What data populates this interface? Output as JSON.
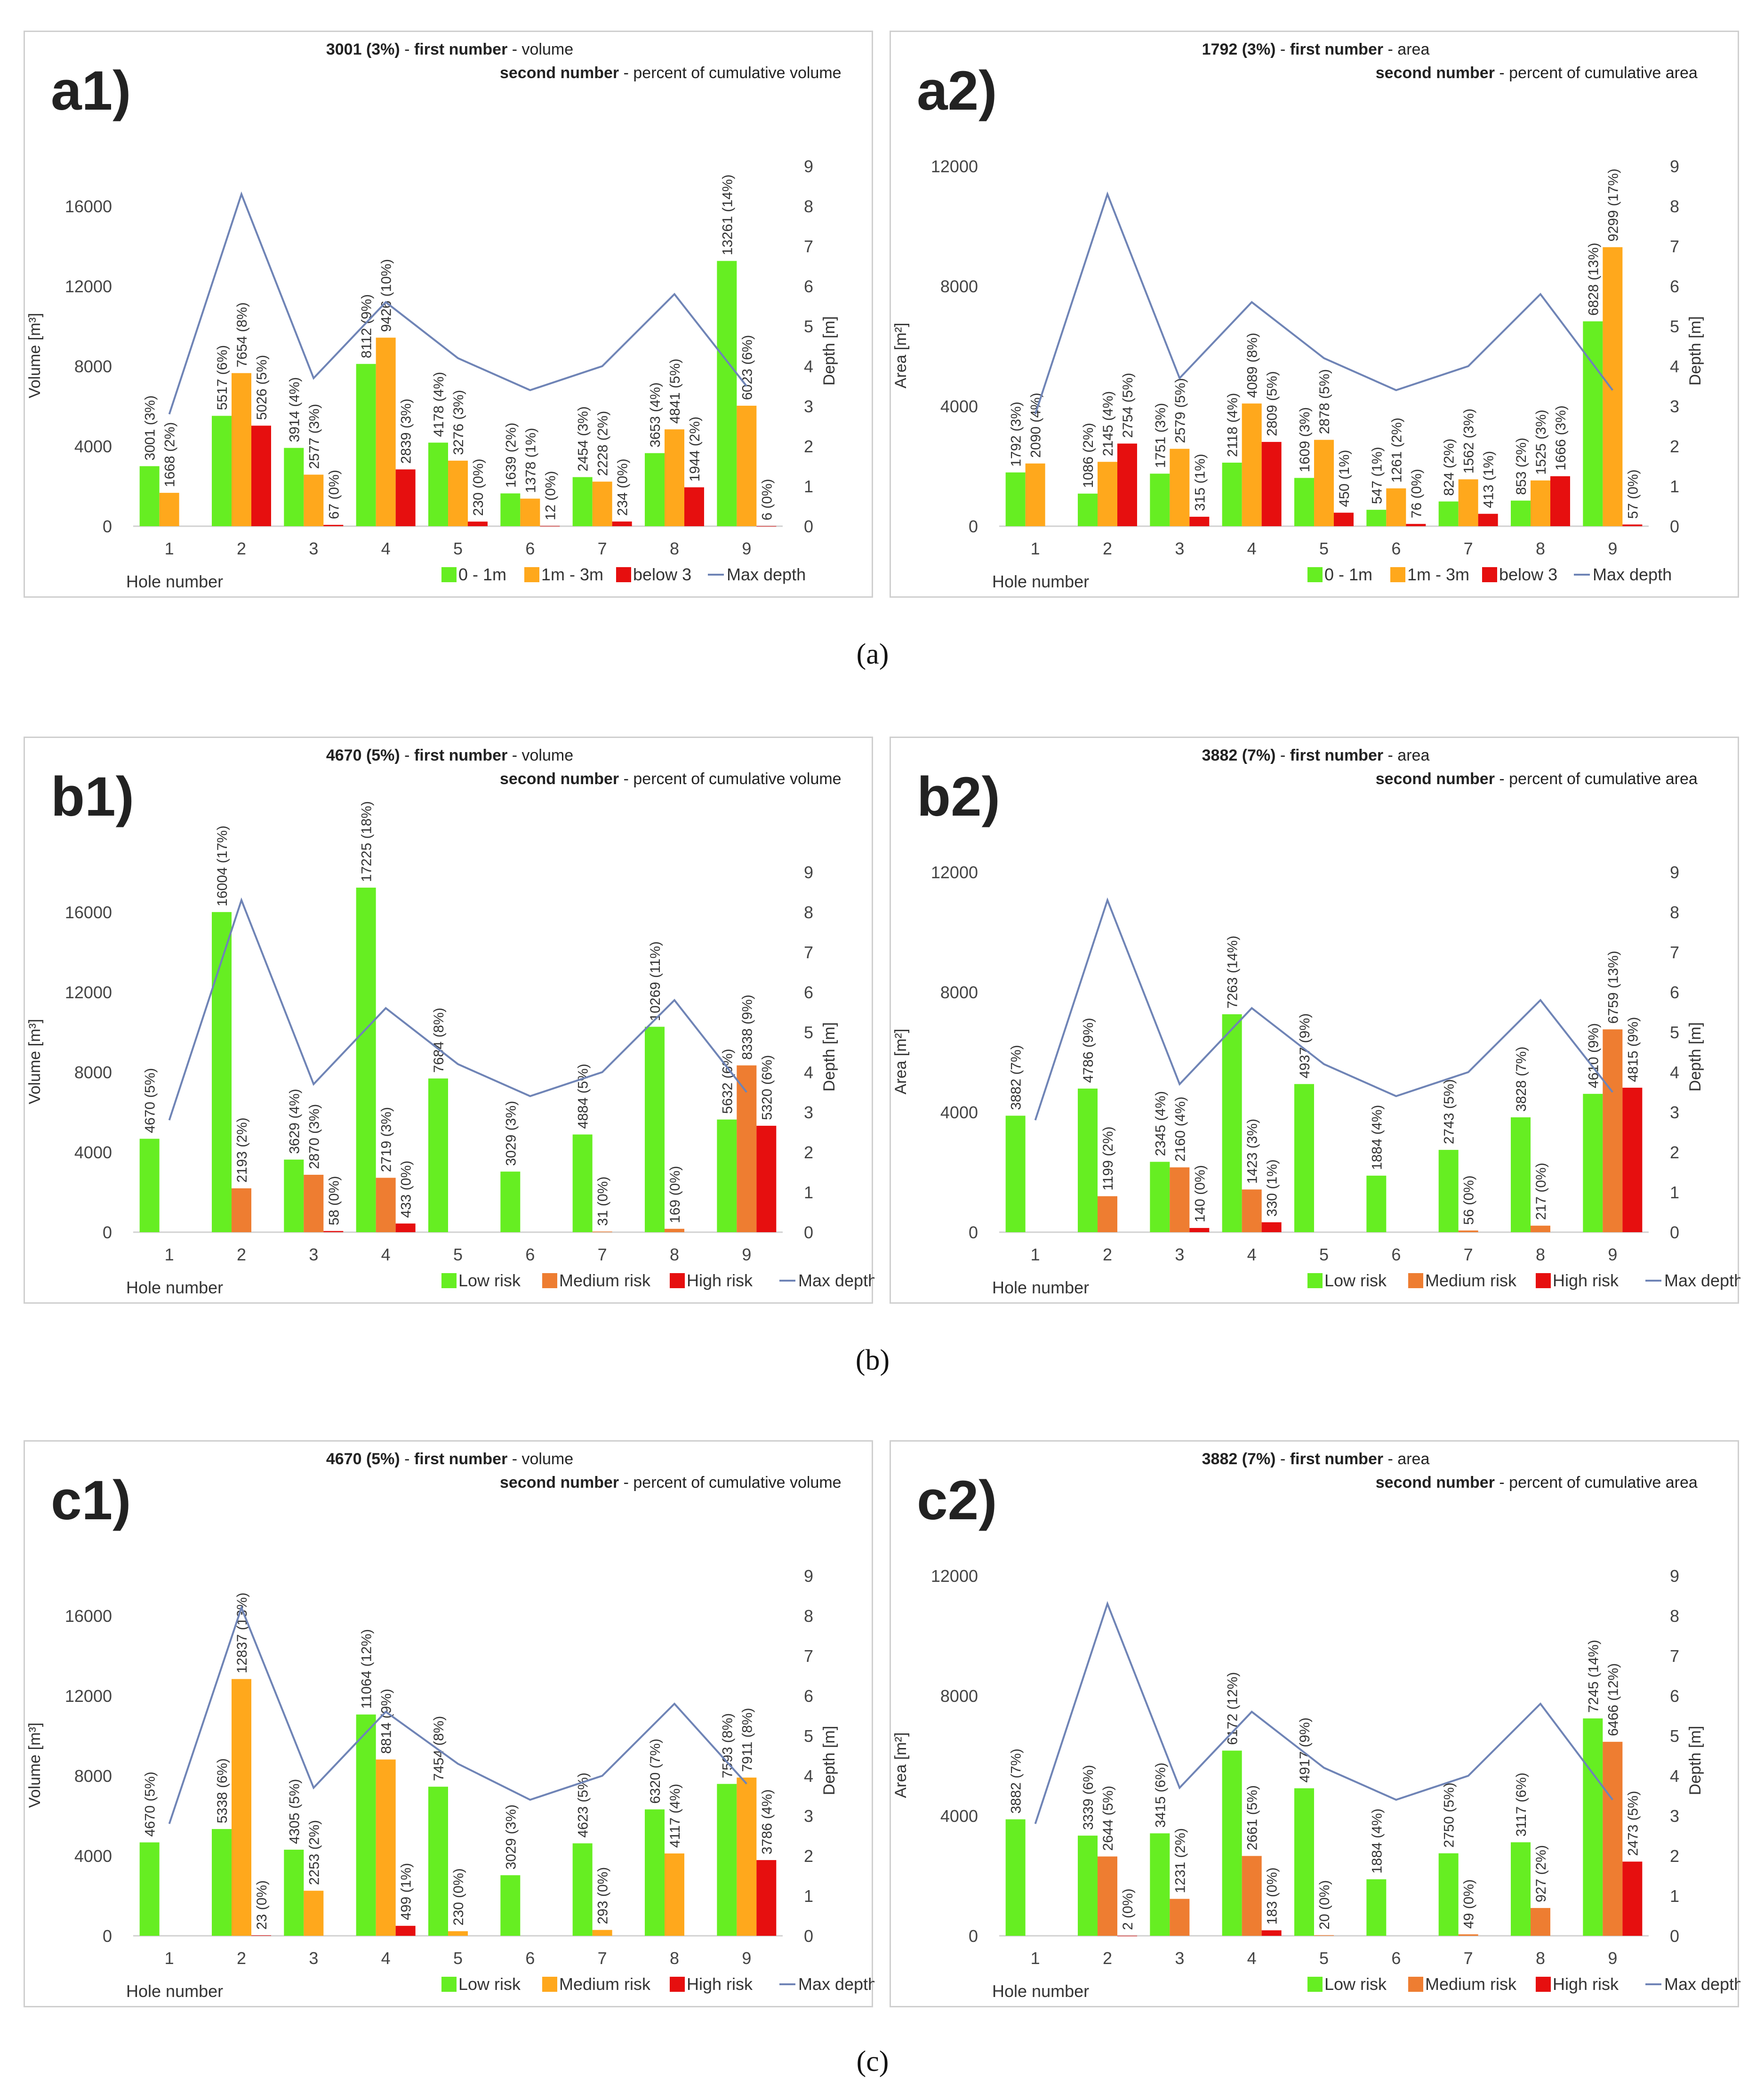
{
  "captions": [
    "(a)",
    "(b)",
    "(c)"
  ],
  "colors": {
    "green": "#66ee22",
    "orange": "#ffa81c",
    "orange_dark": "#ee7d31",
    "red": "#e60f0f",
    "line": "#6f84b6",
    "axis": "#595959"
  },
  "chart_data": [
    {
      "id": "a1",
      "type": "bar+line",
      "panel_label": "a1)",
      "header": {
        "value": "3001 (3%)",
        "sep": " - ",
        "k1": "first number",
        "d1": " - volume",
        "k2": "second number",
        "d2": " - percent of cumulative volume"
      },
      "categories": [
        "1",
        "2",
        "3",
        "4",
        "5",
        "6",
        "7",
        "8",
        "9"
      ],
      "xlabel": "Hole number",
      "ylabel": "Volume [m³]",
      "y2label": "Depth [m]",
      "ylim": [
        0,
        18000
      ],
      "yticks": [
        0,
        4000,
        8000,
        12000,
        16000
      ],
      "y2lim": [
        0,
        9
      ],
      "y2ticks": [
        0,
        1,
        2,
        3,
        4,
        5,
        6,
        7,
        8,
        9
      ],
      "series": [
        {
          "name": "0 - 1m",
          "color": "green",
          "values": [
            3001,
            5517,
            3914,
            8112,
            4178,
            1639,
            2454,
            3653,
            13261
          ],
          "labels": [
            "3001 (3%)",
            "5517 (6%)",
            "3914 (4%)",
            "8112 (9%)",
            "4178 (4%)",
            "1639 (2%)",
            "2454 (3%)",
            "3653 (4%)",
            "13261 (14%)"
          ]
        },
        {
          "name": "1m - 3m",
          "color": "orange",
          "values": [
            1668,
            7654,
            2577,
            9426,
            3276,
            1378,
            2228,
            4841,
            6023
          ],
          "labels": [
            "1668 (2%)",
            "7654 (8%)",
            "2577 (3%)",
            "9426 (10%)",
            "3276 (3%)",
            "1378 (1%)",
            "2228 (2%)",
            "4841 (5%)",
            "6023 (6%)"
          ]
        },
        {
          "name": "below 3",
          "color": "red",
          "values": [
            0,
            5026,
            67,
            2839,
            230,
            12,
            234,
            1944,
            6
          ],
          "labels": [
            "",
            "5026 (5%)",
            "67 (0%)",
            "2839 (3%)",
            "230 (0%)",
            "12 (0%)",
            "234 (0%)",
            "1944 (2%)",
            "6 (0%)"
          ]
        }
      ],
      "line": {
        "name": "Max depth",
        "values": [
          2.8,
          8.3,
          3.7,
          5.6,
          4.2,
          3.4,
          4.0,
          5.8,
          3.5
        ]
      }
    },
    {
      "id": "a2",
      "type": "bar+line",
      "panel_label": "a2)",
      "header": {
        "value": "1792 (3%)",
        "sep": " - ",
        "k1": "first number",
        "d1": " - area",
        "k2": "second number",
        "d2": " - percent of cumulative area"
      },
      "categories": [
        "1",
        "2",
        "3",
        "4",
        "5",
        "6",
        "7",
        "8",
        "9"
      ],
      "xlabel": "Hole number",
      "ylabel": "Area [m²]",
      "y2label": "Depth [m]",
      "ylim": [
        0,
        12000
      ],
      "yticks": [
        0,
        4000,
        8000,
        12000
      ],
      "y2lim": [
        0,
        9
      ],
      "y2ticks": [
        0,
        1,
        2,
        3,
        4,
        5,
        6,
        7,
        8,
        9
      ],
      "series": [
        {
          "name": "0 - 1m",
          "color": "green",
          "values": [
            1792,
            1086,
            1751,
            2118,
            1609,
            547,
            824,
            853,
            6828
          ],
          "labels": [
            "1792 (3%)",
            "1086 (2%)",
            "1751 (3%)",
            "2118 (4%)",
            "1609 (3%)",
            "547 (1%)",
            "824 (2%)",
            "853 (2%)",
            "6828 (13%)"
          ]
        },
        {
          "name": "1m - 3m",
          "color": "orange",
          "values": [
            2090,
            2145,
            2579,
            4089,
            2878,
            1261,
            1562,
            1525,
            9299
          ],
          "labels": [
            "2090 (4%)",
            "2145 (4%)",
            "2579 (5%)",
            "4089 (8%)",
            "2878 (5%)",
            "1261 (2%)",
            "1562 (3%)",
            "1525 (3%)",
            "9299 (17%)"
          ]
        },
        {
          "name": "below 3",
          "color": "red",
          "values": [
            0,
            2754,
            315,
            2809,
            450,
            76,
            413,
            1666,
            57
          ],
          "labels": [
            "",
            "2754 (5%)",
            "315 (1%)",
            "2809 (5%)",
            "450 (1%)",
            "76 (0%)",
            "413 (1%)",
            "1666 (3%)",
            "57 (0%)"
          ]
        }
      ],
      "line": {
        "name": "Max depth",
        "values": [
          2.8,
          8.3,
          3.7,
          5.6,
          4.2,
          3.4,
          4.0,
          5.8,
          3.4
        ]
      }
    },
    {
      "id": "b1",
      "type": "bar+line",
      "panel_label": "b1)",
      "header": {
        "value": "4670 (5%)",
        "sep": " - ",
        "k1": "first number",
        "d1": " - volume",
        "k2": "second number",
        "d2": " - percent of cumulative volume"
      },
      "categories": [
        "1",
        "2",
        "3",
        "4",
        "5",
        "6",
        "7",
        "8",
        "9"
      ],
      "xlabel": "Hole number",
      "ylabel": "Volume [m³]",
      "y2label": "Depth [m]",
      "ylim": [
        0,
        18000
      ],
      "yticks": [
        0,
        4000,
        8000,
        12000,
        16000
      ],
      "y2lim": [
        0,
        9
      ],
      "y2ticks": [
        0,
        1,
        2,
        3,
        4,
        5,
        6,
        7,
        8,
        9
      ],
      "series": [
        {
          "name": "Low risk",
          "color": "green",
          "values": [
            4670,
            16004,
            3629,
            17225,
            7684,
            3029,
            4884,
            10269,
            5632
          ],
          "labels": [
            "4670 (5%)",
            "16004 (17%)",
            "3629 (4%)",
            "17225 (18%)",
            "7684 (8%)",
            "3029 (3%)",
            "4884 (5%)",
            "10269 (11%)",
            "5632 (6%)"
          ]
        },
        {
          "name": "Medium risk",
          "color": "orange_dark",
          "values": [
            0,
            2193,
            2870,
            2719,
            0,
            0,
            31,
            169,
            8338
          ],
          "labels": [
            "",
            "2193 (2%)",
            "2870 (3%)",
            "2719 (3%)",
            "",
            "",
            "31 (0%)",
            "169 (0%)",
            "8338 (9%)"
          ]
        },
        {
          "name": "High risk",
          "color": "red",
          "values": [
            0,
            0,
            58,
            433,
            0,
            0,
            0,
            0,
            5320
          ],
          "labels": [
            "",
            "",
            "58 (0%)",
            "433 (0%)",
            "",
            "",
            "",
            "",
            "5320 (6%)"
          ]
        }
      ],
      "line": {
        "name": "Max depth",
        "values": [
          2.8,
          8.3,
          3.7,
          5.6,
          4.2,
          3.4,
          4.0,
          5.8,
          3.5
        ]
      }
    },
    {
      "id": "b2",
      "type": "bar+line",
      "panel_label": "b2)",
      "header": {
        "value": "3882 (7%)",
        "sep": " - ",
        "k1": "first number",
        "d1": " - area",
        "k2": "second number",
        "d2": " - percent of cumulative area"
      },
      "categories": [
        "1",
        "2",
        "3",
        "4",
        "5",
        "6",
        "7",
        "8",
        "9"
      ],
      "xlabel": "Hole number",
      "ylabel": "Area [m²]",
      "y2label": "Depth [m]",
      "ylim": [
        0,
        12000
      ],
      "yticks": [
        0,
        4000,
        8000,
        12000
      ],
      "y2lim": [
        0,
        9
      ],
      "y2ticks": [
        0,
        1,
        2,
        3,
        4,
        5,
        6,
        7,
        8,
        9
      ],
      "series": [
        {
          "name": "Low risk",
          "color": "green",
          "values": [
            3882,
            4786,
            2345,
            7263,
            4937,
            1884,
            2743,
            3828,
            4610
          ],
          "labels": [
            "3882 (7%)",
            "4786 (9%)",
            "2345 (4%)",
            "7263 (14%)",
            "4937 (9%)",
            "1884 (4%)",
            "2743 (5%)",
            "3828 (7%)",
            "4610 (9%)"
          ]
        },
        {
          "name": "Medium risk",
          "color": "orange_dark",
          "values": [
            0,
            1199,
            2160,
            1423,
            0,
            0,
            56,
            217,
            6759
          ],
          "labels": [
            "",
            "1199 (2%)",
            "2160 (4%)",
            "1423 (3%)",
            "",
            "",
            "56 (0%)",
            "217 (0%)",
            "6759 (13%)"
          ]
        },
        {
          "name": "High risk",
          "color": "red",
          "values": [
            0,
            0,
            140,
            330,
            0,
            0,
            0,
            0,
            4815
          ],
          "labels": [
            "",
            "",
            "140 (0%)",
            "330 (1%)",
            "",
            "",
            "",
            "",
            "4815 (9%)"
          ]
        }
      ],
      "line": {
        "name": "Max depth",
        "values": [
          2.8,
          8.3,
          3.7,
          5.6,
          4.2,
          3.4,
          4.0,
          5.8,
          3.5
        ]
      }
    },
    {
      "id": "c1",
      "type": "bar+line",
      "panel_label": "c1)",
      "header": {
        "value": "4670 (5%)",
        "sep": " - ",
        "k1": "first number",
        "d1": " - volume",
        "k2": "second number",
        "d2": " - percent of cumulative volume"
      },
      "categories": [
        "1",
        "2",
        "3",
        "4",
        "5",
        "6",
        "7",
        "8",
        "9"
      ],
      "xlabel": "Hole number",
      "ylabel": "Volume [m³]",
      "y2label": "Depth [m]",
      "ylim": [
        0,
        18000
      ],
      "yticks": [
        0,
        4000,
        8000,
        12000,
        16000
      ],
      "y2lim": [
        0,
        9
      ],
      "y2ticks": [
        0,
        1,
        2,
        3,
        4,
        5,
        6,
        7,
        8,
        9
      ],
      "series": [
        {
          "name": "Low risk",
          "color": "green",
          "values": [
            4670,
            5338,
            4305,
            11064,
            7454,
            3029,
            4623,
            6320,
            7593
          ],
          "labels": [
            "4670 (5%)",
            "5338 (6%)",
            "4305 (5%)",
            "11064 (12%)",
            "7454 (8%)",
            "3029 (3%)",
            "4623 (5%)",
            "6320 (7%)",
            "7593 (8%)"
          ]
        },
        {
          "name": "Medium risk",
          "color": "orange",
          "values": [
            0,
            12837,
            2253,
            8814,
            230,
            0,
            293,
            4117,
            7911
          ],
          "labels": [
            "",
            "12837 (13%)",
            "2253 (2%)",
            "8814 (9%)",
            "230 (0%)",
            "",
            "293 (0%)",
            "4117 (4%)",
            "7911 (8%)"
          ]
        },
        {
          "name": "High risk",
          "color": "red",
          "values": [
            0,
            23,
            0,
            499,
            0,
            0,
            0,
            0,
            3786
          ],
          "labels": [
            "",
            "23 (0%)",
            "",
            "499 (1%)",
            "",
            "",
            "",
            "",
            "3786 (4%)"
          ]
        }
      ],
      "line": {
        "name": "Max depth",
        "values": [
          2.8,
          8.2,
          3.7,
          5.6,
          4.3,
          3.4,
          4.0,
          5.8,
          3.8
        ]
      }
    },
    {
      "id": "c2",
      "type": "bar+line",
      "panel_label": "c2)",
      "header": {
        "value": "3882 (7%)",
        "sep": " - ",
        "k1": "first number",
        "d1": " - area",
        "k2": "second number",
        "d2": " - percent of cumulative area"
      },
      "categories": [
        "1",
        "2",
        "3",
        "4",
        "5",
        "6",
        "7",
        "8",
        "9"
      ],
      "xlabel": "Hole number",
      "ylabel": "Area [m²]",
      "y2label": "Depth [m]",
      "ylim": [
        0,
        12000
      ],
      "yticks": [
        0,
        4000,
        8000,
        12000
      ],
      "y2lim": [
        0,
        9
      ],
      "y2ticks": [
        0,
        1,
        2,
        3,
        4,
        5,
        6,
        7,
        8,
        9
      ],
      "series": [
        {
          "name": "Low risk",
          "color": "green",
          "values": [
            3882,
            3339,
            3415,
            6172,
            4917,
            1884,
            2750,
            3117,
            7245
          ],
          "labels": [
            "3882 (7%)",
            "3339 (6%)",
            "3415 (6%)",
            "6172 (12%)",
            "4917 (9%)",
            "1884 (4%)",
            "2750 (5%)",
            "3117 (6%)",
            "7245 (14%)"
          ]
        },
        {
          "name": "Medium risk",
          "color": "orange_dark",
          "values": [
            0,
            2644,
            1231,
            2661,
            20,
            0,
            49,
            927,
            6466
          ],
          "labels": [
            "",
            "2644 (5%)",
            "1231 (2%)",
            "2661 (5%)",
            "20 (0%)",
            "",
            "49 (0%)",
            "927 (2%)",
            "6466 (12%)"
          ]
        },
        {
          "name": "High risk",
          "color": "red",
          "values": [
            0,
            2,
            0,
            183,
            0,
            0,
            0,
            0,
            2473
          ],
          "labels": [
            "",
            "2 (0%)",
            "",
            "183 (0%)",
            "",
            "",
            "",
            "",
            "2473 (5%)"
          ]
        }
      ],
      "line": {
        "name": "Max depth",
        "values": [
          2.8,
          8.3,
          3.7,
          5.6,
          4.2,
          3.4,
          4.0,
          5.8,
          3.4
        ]
      }
    }
  ]
}
